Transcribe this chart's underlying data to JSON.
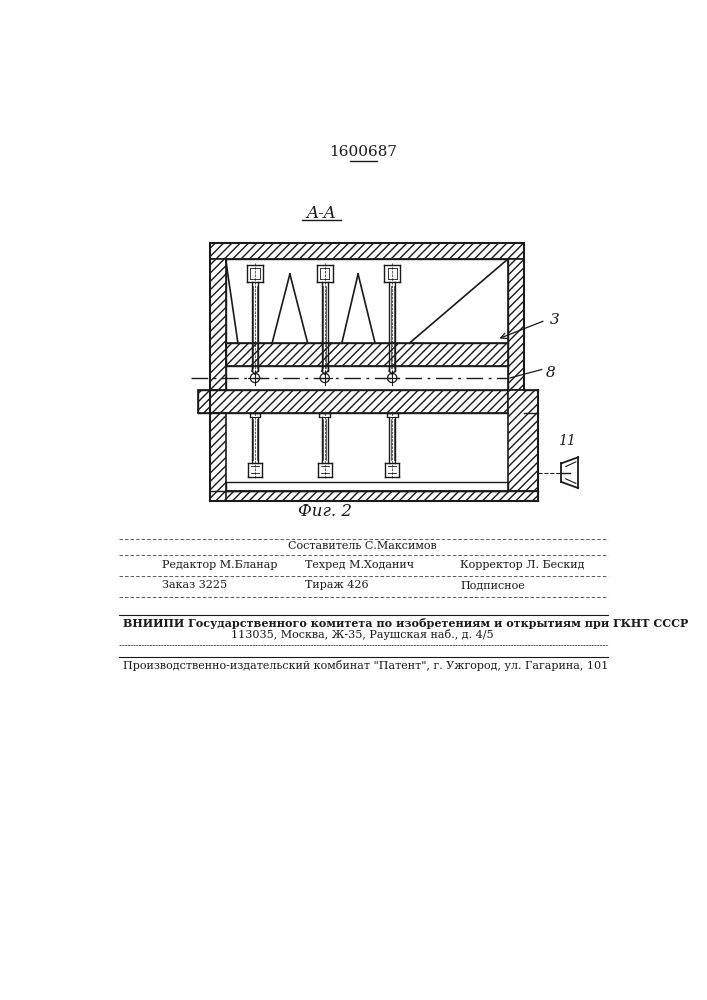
{
  "patent_number": "1600687",
  "fig_label": "Фиг. 2",
  "section_label": "A-A",
  "label_3": "3",
  "label_8": "8",
  "label_11": "11",
  "bg_color": "#ffffff",
  "line_color": "#1a1a1a",
  "footer_sestavitel": "Составитель С.Максимов",
  "footer_redaktor": "Редактор М.Бланар",
  "footer_tehred": "Техред М.Ходанич",
  "footer_korrektor": "Корректор Л. Бескид",
  "footer_zakaz": "Заказ 3225",
  "footer_tirazh": "Тираж 426",
  "footer_podpisnoe": "Подписное",
  "footer_vniiipi": "ВНИИПИ Государственного комитета по изобретениям и открытиям при ГКНТ СССР",
  "footer_address": "113035, Москва, Ж-35, Раушская наб., д. 4/5",
  "footer_patent": "Производственно-издательский комбинат \"Патент\", г. Ужгород, ул. Гагарина, 101"
}
